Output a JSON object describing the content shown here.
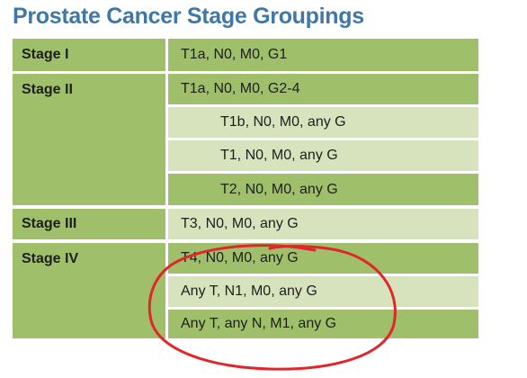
{
  "title": "Prostate Cancer Stage Groupings",
  "rows": [
    {
      "stage": "Stage I",
      "criteria": [
        "T1a, N0, M0, G1"
      ]
    },
    {
      "stage": "Stage II",
      "criteria": [
        "T1a, N0, M0, G2-4",
        "T1b, N0, M0, any G",
        "T1, N0, M0, any G",
        "T2, N0, M0, any G"
      ]
    },
    {
      "stage": "Stage III",
      "criteria": [
        "T3, N0, M0, any G"
      ]
    },
    {
      "stage": "Stage IV",
      "criteria": [
        "T4, N0, M0, any G",
        "Any T, N1, M0, any G",
        "Any T, any N, M1, any G"
      ]
    }
  ],
  "colors": {
    "title": "#3f78a6",
    "row_dark": "#9fbf6b",
    "row_light": "#d6e3bd",
    "annotation": "#e0262a"
  }
}
